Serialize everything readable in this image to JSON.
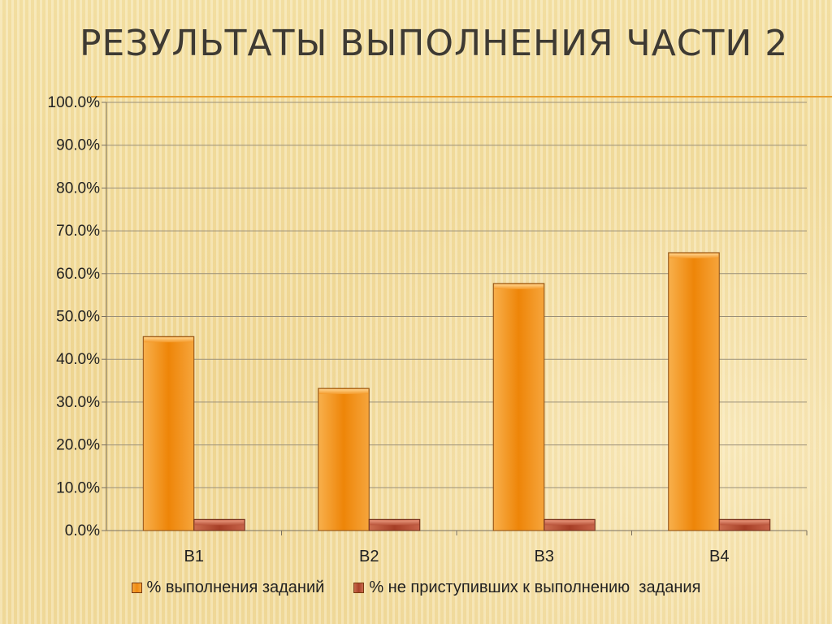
{
  "title": "РЕЗУЛЬТАТЫ ВЫПОЛНЕНИЯ ЧАСТИ 2",
  "chart_data": {
    "type": "bar",
    "categories": [
      "B1",
      "B2",
      "B3",
      "B4"
    ],
    "series": [
      {
        "name": "% выполнения заданий",
        "values": [
          45.3,
          33.2,
          57.7,
          64.9
        ],
        "color": "#f08a10"
      },
      {
        "name": "% не приступивших к выполнению  задания",
        "values": [
          2.6,
          2.6,
          2.6,
          2.6
        ],
        "color": "#b24a30"
      }
    ],
    "y_ticks": [
      "0.0%",
      "10.0%",
      "20.0%",
      "30.0%",
      "40.0%",
      "50.0%",
      "60.0%",
      "70.0%",
      "80.0%",
      "90.0%",
      "100.0%"
    ],
    "ylim": [
      0,
      100
    ],
    "xlabel": "",
    "ylabel": "",
    "grid": true,
    "legend_position": "bottom"
  }
}
